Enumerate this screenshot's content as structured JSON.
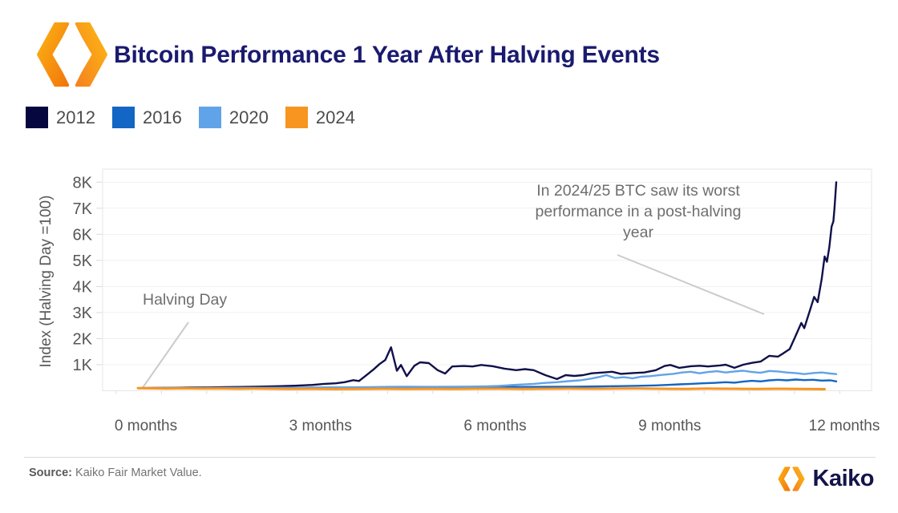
{
  "header": {
    "title": "Bitcoin Performance 1 Year After Halving Events"
  },
  "legend": [
    {
      "label": "2012",
      "color": "#070740"
    },
    {
      "label": "2016",
      "color": "#1366c4"
    },
    {
      "label": "2020",
      "color": "#61a3e8"
    },
    {
      "label": "2024",
      "color": "#f89420"
    }
  ],
  "chart_data": {
    "type": "line",
    "title": "Bitcoin Performance 1 Year After Halving Events",
    "xlabel": "",
    "ylabel": "Index (Halving Day =100)",
    "xlim": [
      0,
      12
    ],
    "ylim": [
      0,
      8500
    ],
    "grid": "horizontal",
    "legend_position": "top-left",
    "y_ticks": [
      {
        "label": "1K",
        "value": 1000
      },
      {
        "label": "2K",
        "value": 2000
      },
      {
        "label": "3K",
        "value": 3000
      },
      {
        "label": "4K",
        "value": 4000
      },
      {
        "label": "5K",
        "value": 5000
      },
      {
        "label": "6K",
        "value": 6000
      },
      {
        "label": "7K",
        "value": 7000
      },
      {
        "label": "8K",
        "value": 8000
      }
    ],
    "x_ticks": [
      {
        "label": "0 months",
        "m": 0
      },
      {
        "label": "3 months",
        "m": 3
      },
      {
        "label": "6 months",
        "m": 6
      },
      {
        "label": "9 months",
        "m": 9
      },
      {
        "label": "12 months",
        "m": 12
      }
    ],
    "annotations": [
      {
        "id": "halving-day",
        "text": "Halving Day"
      },
      {
        "id": "note-2024",
        "text": "In 2024/25 BTC saw its worst performance in a post-halving year"
      }
    ],
    "series": [
      {
        "name": "2012",
        "color": "#10104a",
        "width": 2.4,
        "points": [
          [
            0,
            100
          ],
          [
            0.3,
            107
          ],
          [
            0.6,
            113
          ],
          [
            0.9,
            122
          ],
          [
            1.2,
            128
          ],
          [
            1.5,
            137
          ],
          [
            1.8,
            148
          ],
          [
            2.1,
            160
          ],
          [
            2.4,
            175
          ],
          [
            2.7,
            195
          ],
          [
            3,
            225
          ],
          [
            3.2,
            265
          ],
          [
            3.4,
            285
          ],
          [
            3.55,
            330
          ],
          [
            3.7,
            405
          ],
          [
            3.8,
            375
          ],
          [
            3.95,
            640
          ],
          [
            4.05,
            820
          ],
          [
            4.15,
            1020
          ],
          [
            4.25,
            1180
          ],
          [
            4.35,
            1670
          ],
          [
            4.45,
            770
          ],
          [
            4.52,
            990
          ],
          [
            4.62,
            560
          ],
          [
            4.75,
            960
          ],
          [
            4.85,
            1090
          ],
          [
            5,
            1060
          ],
          [
            5.15,
            790
          ],
          [
            5.28,
            660
          ],
          [
            5.4,
            930
          ],
          [
            5.6,
            950
          ],
          [
            5.75,
            930
          ],
          [
            5.9,
            990
          ],
          [
            6.1,
            940
          ],
          [
            6.3,
            850
          ],
          [
            6.5,
            790
          ],
          [
            6.65,
            830
          ],
          [
            6.8,
            790
          ],
          [
            7,
            600
          ],
          [
            7.2,
            450
          ],
          [
            7.35,
            600
          ],
          [
            7.5,
            570
          ],
          [
            7.65,
            600
          ],
          [
            7.8,
            670
          ],
          [
            8,
            700
          ],
          [
            8.15,
            730
          ],
          [
            8.3,
            650
          ],
          [
            8.5,
            680
          ],
          [
            8.7,
            700
          ],
          [
            8.9,
            790
          ],
          [
            9.05,
            950
          ],
          [
            9.15,
            990
          ],
          [
            9.3,
            880
          ],
          [
            9.5,
            940
          ],
          [
            9.65,
            960
          ],
          [
            9.8,
            930
          ],
          [
            10,
            970
          ],
          [
            10.1,
            1000
          ],
          [
            10.25,
            880
          ],
          [
            10.4,
            1000
          ],
          [
            10.55,
            1070
          ],
          [
            10.7,
            1120
          ],
          [
            10.85,
            1340
          ],
          [
            11,
            1310
          ],
          [
            11.1,
            1450
          ],
          [
            11.2,
            1600
          ],
          [
            11.3,
            2100
          ],
          [
            11.4,
            2600
          ],
          [
            11.45,
            2400
          ],
          [
            11.55,
            3100
          ],
          [
            11.62,
            3600
          ],
          [
            11.68,
            3400
          ],
          [
            11.75,
            4300
          ],
          [
            11.8,
            5150
          ],
          [
            11.84,
            4950
          ],
          [
            11.88,
            5500
          ],
          [
            11.92,
            6300
          ],
          [
            11.95,
            6500
          ],
          [
            11.97,
            7000
          ],
          [
            12,
            8000
          ]
        ]
      },
      {
        "name": "2016",
        "color": "#1366c4",
        "width": 2.4,
        "points": [
          [
            0,
            100
          ],
          [
            0.5,
            104
          ],
          [
            1,
            108
          ],
          [
            1.5,
            112
          ],
          [
            2,
            115
          ],
          [
            2.5,
            118
          ],
          [
            3,
            122
          ],
          [
            3.5,
            126
          ],
          [
            4,
            128
          ],
          [
            4.5,
            132
          ],
          [
            5,
            135
          ],
          [
            5.5,
            138
          ],
          [
            6,
            142
          ],
          [
            6.5,
            148
          ],
          [
            7,
            152
          ],
          [
            7.5,
            158
          ],
          [
            8,
            168
          ],
          [
            8.3,
            178
          ],
          [
            8.6,
            190
          ],
          [
            8.9,
            205
          ],
          [
            9.1,
            225
          ],
          [
            9.3,
            245
          ],
          [
            9.5,
            265
          ],
          [
            9.7,
            285
          ],
          [
            9.9,
            300
          ],
          [
            10.1,
            330
          ],
          [
            10.25,
            310
          ],
          [
            10.4,
            350
          ],
          [
            10.55,
            380
          ],
          [
            10.7,
            360
          ],
          [
            10.85,
            400
          ],
          [
            11,
            420
          ],
          [
            11.15,
            400
          ],
          [
            11.3,
            430
          ],
          [
            11.45,
            410
          ],
          [
            11.6,
            420
          ],
          [
            11.75,
            390
          ],
          [
            11.9,
            400
          ],
          [
            12,
            360
          ]
        ]
      },
      {
        "name": "2020",
        "color": "#61a3e8",
        "width": 2.4,
        "points": [
          [
            0,
            100
          ],
          [
            0.5,
            103
          ],
          [
            1,
            106
          ],
          [
            1.5,
            110
          ],
          [
            2,
            114
          ],
          [
            2.5,
            118
          ],
          [
            3,
            124
          ],
          [
            3.5,
            132
          ],
          [
            4,
            142
          ],
          [
            4.3,
            150
          ],
          [
            4.6,
            155
          ],
          [
            5,
            150
          ],
          [
            5.4,
            155
          ],
          [
            5.7,
            160
          ],
          [
            6,
            170
          ],
          [
            6.2,
            185
          ],
          [
            6.4,
            215
          ],
          [
            6.6,
            240
          ],
          [
            6.8,
            265
          ],
          [
            7,
            300
          ],
          [
            7.2,
            330
          ],
          [
            7.4,
            370
          ],
          [
            7.6,
            400
          ],
          [
            7.8,
            470
          ],
          [
            7.95,
            540
          ],
          [
            8.05,
            600
          ],
          [
            8.2,
            490
          ],
          [
            8.35,
            520
          ],
          [
            8.5,
            480
          ],
          [
            8.65,
            540
          ],
          [
            8.8,
            560
          ],
          [
            9,
            610
          ],
          [
            9.2,
            650
          ],
          [
            9.35,
            700
          ],
          [
            9.5,
            730
          ],
          [
            9.65,
            670
          ],
          [
            9.8,
            720
          ],
          [
            9.95,
            750
          ],
          [
            10.1,
            700
          ],
          [
            10.25,
            740
          ],
          [
            10.4,
            770
          ],
          [
            10.55,
            720
          ],
          [
            10.7,
            690
          ],
          [
            10.85,
            760
          ],
          [
            11,
            740
          ],
          [
            11.15,
            700
          ],
          [
            11.3,
            680
          ],
          [
            11.45,
            640
          ],
          [
            11.6,
            680
          ],
          [
            11.75,
            700
          ],
          [
            11.9,
            660
          ],
          [
            12,
            640
          ]
        ]
      },
      {
        "name": "2024",
        "color": "#f89420",
        "width": 3,
        "points": [
          [
            0,
            100
          ],
          [
            0.25,
            92
          ],
          [
            0.5,
            86
          ],
          [
            0.8,
            92
          ],
          [
            1.1,
            84
          ],
          [
            1.4,
            88
          ],
          [
            1.7,
            78
          ],
          [
            2,
            84
          ],
          [
            2.3,
            76
          ],
          [
            2.6,
            70
          ],
          [
            3,
            74
          ],
          [
            3.4,
            64
          ],
          [
            3.8,
            72
          ],
          [
            4.2,
            78
          ],
          [
            4.6,
            70
          ],
          [
            5,
            74
          ],
          [
            5.4,
            68
          ],
          [
            5.8,
            76
          ],
          [
            6.2,
            80
          ],
          [
            6.6,
            72
          ],
          [
            7,
            78
          ],
          [
            7.4,
            84
          ],
          [
            7.8,
            76
          ],
          [
            8.2,
            82
          ],
          [
            8.6,
            88
          ],
          [
            9,
            78
          ],
          [
            9.4,
            72
          ],
          [
            9.8,
            82
          ],
          [
            10.2,
            78
          ],
          [
            10.6,
            70
          ],
          [
            11,
            76
          ],
          [
            11.4,
            72
          ],
          [
            11.8,
            62
          ]
        ]
      }
    ]
  },
  "footer": {
    "source_label": "Source:",
    "source_text": " Kaiko Fair Market Value.",
    "brand": "Kaiko"
  }
}
